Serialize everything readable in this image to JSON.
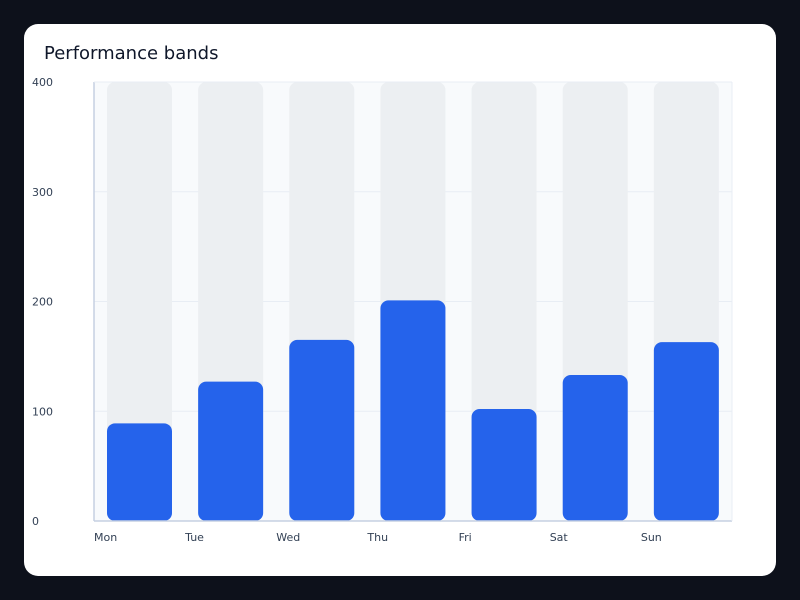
{
  "colors": {
    "page_background": "#0d111b",
    "card_background": "#ffffff",
    "plot_background": "#f8fafc",
    "band_background": "#eceff2",
    "bar": "#2563eb",
    "axis": "#c5d0e2",
    "grid": "#e8edf4",
    "text": "#334155",
    "title": "#0f172a"
  },
  "chart_data": {
    "type": "bar",
    "title": "Performance bands",
    "xlabel": "",
    "ylabel": "",
    "categories": [
      "Mon",
      "Tue",
      "Wed",
      "Thu",
      "Fri",
      "Sat",
      "Sun"
    ],
    "values": [
      89,
      127,
      165,
      201,
      102,
      133,
      163
    ],
    "band_max": 400,
    "ylim": [
      0,
      400
    ],
    "yticks": [
      0,
      100,
      200,
      300,
      400
    ],
    "ytick_labels": [
      "0",
      "100",
      "200",
      "300",
      "400"
    ],
    "grid": true,
    "legend": "none"
  }
}
